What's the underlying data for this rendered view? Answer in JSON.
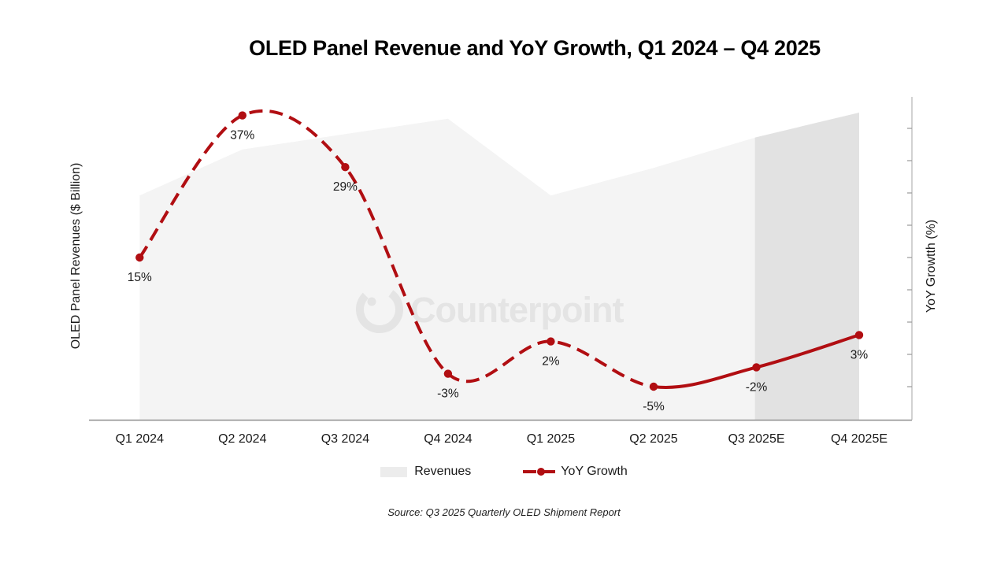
{
  "header": {
    "title": "OLED Panel Revenue and YoY Growth, Q1 2024 – Q4 2025"
  },
  "axes": {
    "left_label": "OLED Panel Revenues ($ Billion)",
    "right_label": "YoY Growtth (%)"
  },
  "legend": {
    "revenues_label": "Revenues",
    "yoy_label": "YoY Growth"
  },
  "footer": {
    "source": "Source: Q3 2025 Quarterly OLED Shipment Report"
  },
  "watermark": {
    "text": "Counterpoint"
  },
  "colors": {
    "line_red": "#b10e12",
    "area_fill": "#f4f4f4",
    "area_forecast_fill": "#e2e2e2",
    "legend_area_swatch": "#ececec",
    "axis_line": "#8f8f8f",
    "right_axis_line": "#b5b5b5",
    "tick": "#9a9a9a",
    "label_text": "#1a1a1a",
    "watermark_gray": "#e4e4e4"
  },
  "chart_data": {
    "type": "combo_area_line",
    "title": "OLED Panel Revenue and YoY Growth, Q1 2024 – Q4 2025",
    "categories": [
      "Q1 2024",
      "Q2 2024",
      "Q3 2024",
      "Q4 2024",
      "Q1 2025",
      "Q2 2025",
      "Q3 2025E",
      "Q4 2025E"
    ],
    "series": [
      {
        "name": "Revenues",
        "type": "area",
        "axis": "left",
        "unit": "relative height (left axis shows no numeric ticks)",
        "values": [
          73,
          88,
          93,
          98,
          73,
          82,
          92,
          100
        ],
        "forecast_from_index": 6
      },
      {
        "name": "YoY Growth",
        "type": "line",
        "axis": "right",
        "unit": "%",
        "values": [
          15,
          37,
          29,
          -3,
          2,
          -5,
          -2,
          3
        ],
        "point_labels": [
          "15%",
          "37%",
          "29%",
          "-3%",
          "2%",
          "-5%",
          "-2%",
          "3%"
        ],
        "dashed_through_index": 5,
        "solid_from_index": 5
      }
    ],
    "ylabel_left": "OLED Panel Revenues ($ Billion)",
    "ylabel_right": "YoY Growtth (%)",
    "right_axis": {
      "tick_interval_pct": 5,
      "tick_numbers_shown": false
    },
    "legend_position": "bottom",
    "grid": false
  }
}
